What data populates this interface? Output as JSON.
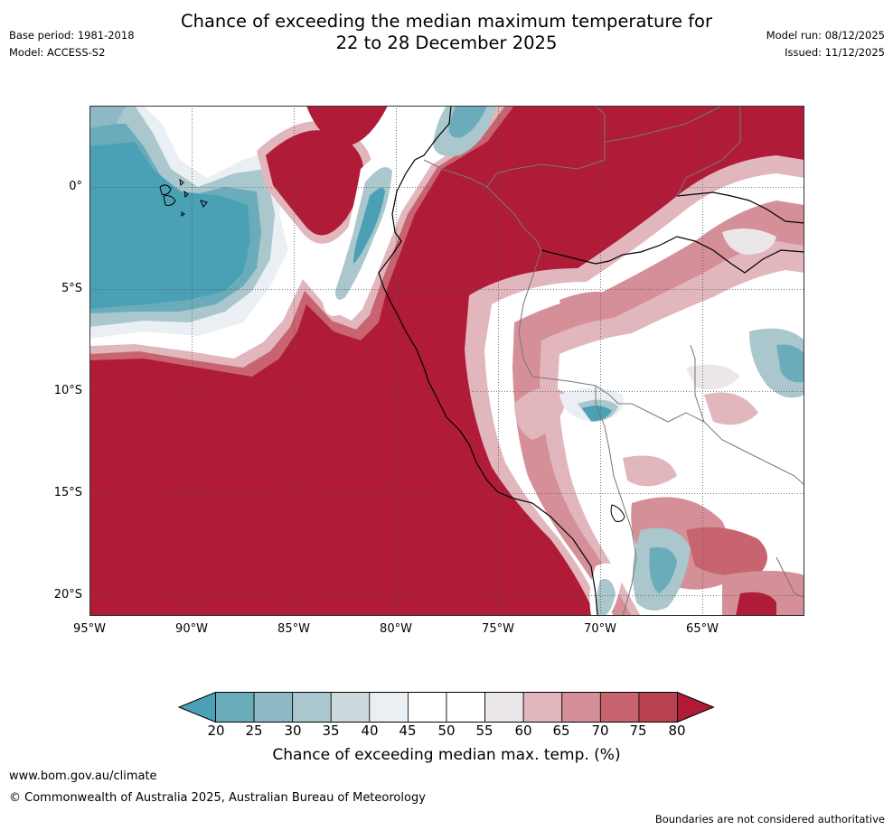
{
  "header": {
    "title_line1": "Chance of exceeding the median maximum temperature for",
    "title_line2": "22 to 28 December 2025",
    "base_period": "Base period: 1981-2018",
    "model": "Model: ACCESS-S2",
    "model_run": "Model run: 08/12/2025",
    "issued": "Issued: 11/12/2025"
  },
  "map": {
    "lat_labels": [
      "0°",
      "5°S",
      "10°S",
      "15°S",
      "20°S"
    ],
    "lon_labels": [
      "95°W",
      "90°W",
      "85°W",
      "80°W",
      "75°W",
      "70°W",
      "65°W"
    ]
  },
  "colorbar": {
    "ticks": [
      "20",
      "25",
      "30",
      "35",
      "40",
      "45",
      "50",
      "55",
      "60",
      "65",
      "70",
      "75",
      "80"
    ],
    "colors": [
      "#4aa0b5",
      "#6aacba",
      "#8cb9c5",
      "#a9c7cc",
      "#cdd9dc",
      "#e9eff2",
      "#ffffff",
      "#ffffff",
      "#ebe6e8",
      "#e2b6bd",
      "#d58f98",
      "#c8646f",
      "#b9414f",
      "#b01c37"
    ],
    "title": "Chance of exceeding median max. temp. (%)"
  },
  "footer": {
    "website": "www.bom.gov.au/climate",
    "copyright": "© Commonwealth of Australia 2025, Australian Bureau of Meteorology",
    "disclaimer": "Boundaries are not considered authoritative"
  }
}
